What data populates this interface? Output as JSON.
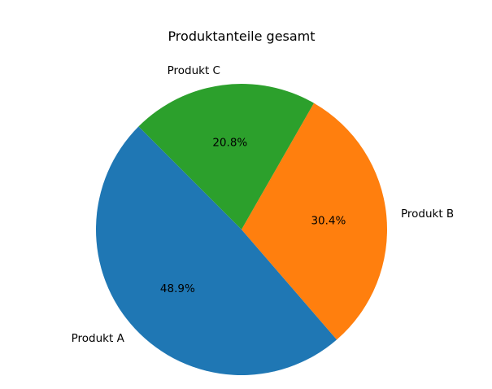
{
  "chart_data": {
    "type": "pie",
    "title": "Produktanteile gesamt",
    "slices": [
      {
        "label": "Produkt A",
        "value": 48.9,
        "pct_label": "48.9%",
        "color": "#1f77b4"
      },
      {
        "label": "Produkt B",
        "value": 30.4,
        "pct_label": "30.4%",
        "color": "#ff7f0e"
      },
      {
        "label": "Produkt C",
        "value": 20.8,
        "pct_label": "20.8%",
        "color": "#2ca02c"
      }
    ],
    "start_angle_deg": 135,
    "direction": "counterclockwise"
  }
}
